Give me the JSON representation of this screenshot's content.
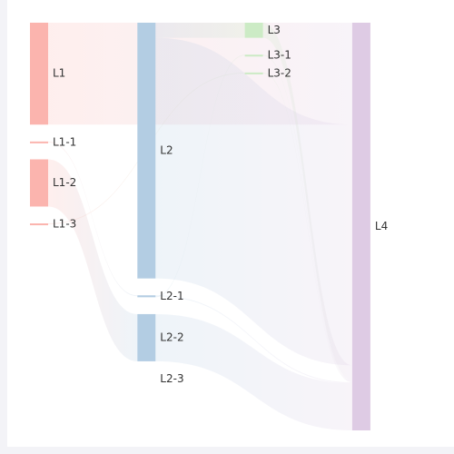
{
  "chart_data": {
    "type": "sankey",
    "nodes": [
      {
        "name": "L1",
        "depth": 0,
        "color": "#fbb4ae"
      },
      {
        "name": "L1-1",
        "depth": 0,
        "color": "#fbb4ae"
      },
      {
        "name": "L1-2",
        "depth": 0,
        "color": "#fbb4ae"
      },
      {
        "name": "L1-3",
        "depth": 0,
        "color": "#fbb4ae"
      },
      {
        "name": "L2",
        "depth": 1,
        "color": "#b3cde3"
      },
      {
        "name": "L2-1",
        "depth": 1,
        "color": "#b3cde3"
      },
      {
        "name": "L2-2",
        "depth": 1,
        "color": "#b3cde3"
      },
      {
        "name": "L2-3",
        "depth": 1,
        "color": "#b3cde3"
      },
      {
        "name": "L3",
        "depth": 2,
        "color": "#ccebc5"
      },
      {
        "name": "L3-1",
        "depth": 2,
        "color": "#ccebc5"
      },
      {
        "name": "L3-2",
        "depth": 2,
        "color": "#ccebc5"
      },
      {
        "name": "L4",
        "depth": 3,
        "color": "#decbe4"
      }
    ],
    "links": [
      {
        "source": "L1",
        "target": "L4",
        "value": 108
      },
      {
        "source": "L1-1",
        "target": "L2-1",
        "value": 1
      },
      {
        "source": "L1-2",
        "target": "L2-2",
        "value": 50
      },
      {
        "source": "L1-3",
        "target": "L3-2",
        "value": 1
      },
      {
        "source": "L2",
        "target": "L3",
        "value": 16
      },
      {
        "source": "L2",
        "target": "L4",
        "value": 255
      },
      {
        "source": "L2-1",
        "target": "L3-1",
        "value": 1
      },
      {
        "source": "L2-1",
        "target": "L4",
        "value": 1
      },
      {
        "source": "L2-2",
        "target": "L4",
        "value": 50
      },
      {
        "source": "L3",
        "target": "L4",
        "value": 16
      },
      {
        "source": "L3-1",
        "target": "L4",
        "value": 1
      },
      {
        "source": "L3-2",
        "target": "L4",
        "value": 1
      }
    ]
  }
}
